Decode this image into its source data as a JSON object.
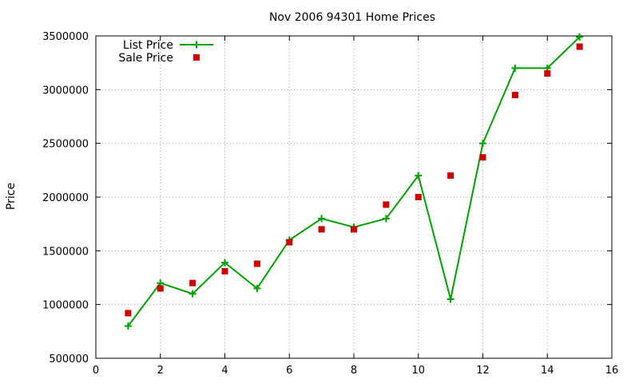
{
  "chart_data": {
    "type": "line",
    "title": "Nov 2006 94301 Home Prices",
    "xlabel": "",
    "ylabel": "Price",
    "xlim": [
      0,
      16
    ],
    "ylim": [
      500000,
      3500000
    ],
    "x_ticks": [
      "0",
      "2",
      "4",
      "6",
      "8",
      "10",
      "12",
      "14",
      "16"
    ],
    "y_ticks": [
      "500000",
      "1000000",
      "1500000",
      "2000000",
      "2500000",
      "3000000",
      "3500000"
    ],
    "grid": true,
    "legend_position": "top-left",
    "series": [
      {
        "name": "List Price",
        "style": "line+cross",
        "color": "#00a000",
        "x": [
          1,
          2,
          3,
          4,
          5,
          6,
          7,
          8,
          9,
          10,
          11,
          12,
          13,
          14,
          15
        ],
        "y": [
          800000,
          1200000,
          1100000,
          1390000,
          1150000,
          1600000,
          1800000,
          1720000,
          1800000,
          2200000,
          1050000,
          2500000,
          3200000,
          3200000,
          3490000
        ]
      },
      {
        "name": "Sale Price",
        "style": "points-square",
        "color": "#cc0000",
        "x": [
          1,
          2,
          3,
          4,
          5,
          6,
          7,
          8,
          9,
          10,
          11,
          12,
          13,
          14,
          15
        ],
        "y": [
          920000,
          1150000,
          1200000,
          1310000,
          1380000,
          1580000,
          1700000,
          1700000,
          1930000,
          2000000,
          2200000,
          2370000,
          2950000,
          3150000,
          3400000
        ]
      }
    ]
  }
}
